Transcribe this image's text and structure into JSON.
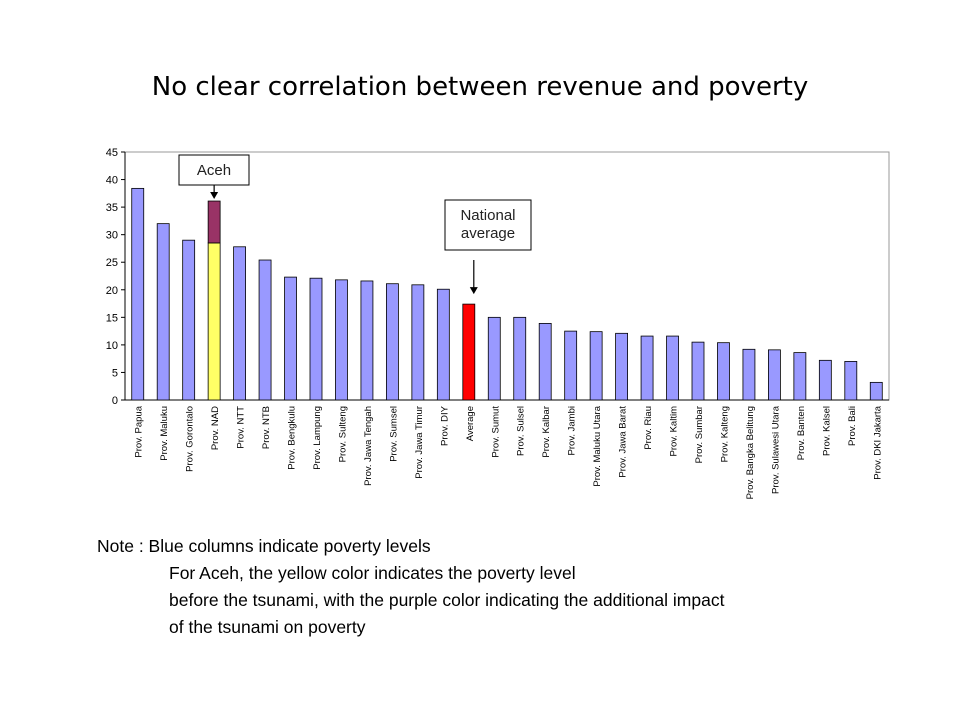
{
  "slide": {
    "title": "No clear correlation between revenue and poverty"
  },
  "chart_data": {
    "type": "bar",
    "title": "",
    "xlabel": "",
    "ylabel": "",
    "ylim": [
      0,
      45
    ],
    "yticks": [
      0,
      5,
      10,
      15,
      20,
      25,
      30,
      35,
      40,
      45
    ],
    "grid": true,
    "legend": "none",
    "categories": [
      "Prov. Papua",
      "Prov. Maluku",
      "Prov. Gorontalo",
      "Prov. NAD",
      "Prov. NTT",
      "Prov. NTB",
      "Prov. Bengkulu",
      "Prov. Lampung",
      "Prov. Sulteng",
      "Prov. Jawa Tengah",
      "Prov. Sumsel",
      "Prov. Jawa Timur",
      "Prov. DIY",
      "Average",
      "Prov. Sumut",
      "Prov. Sulsel",
      "Prov. Kalbar",
      "Prov. Jambi",
      "Prov. Maluku Utara",
      "Prov. Jawa Barat",
      "Prov. Riau",
      "Prov. Kaltim",
      "Prov. Sumbar",
      "Prov. Kalteng",
      "Prov. Bangka Belitung",
      "Prov. Sulawesi Utara",
      "Prov. Banten",
      "Prov. Kalsel",
      "Prov. Bali",
      "Prov. DKI Jakarta"
    ],
    "values": [
      38.4,
      32.0,
      29.0,
      36.1,
      27.8,
      25.4,
      22.3,
      22.1,
      21.8,
      21.6,
      21.1,
      20.9,
      20.1,
      17.4,
      15.0,
      15.0,
      13.9,
      12.5,
      12.4,
      12.1,
      11.6,
      11.6,
      10.5,
      10.4,
      9.2,
      9.1,
      8.6,
      7.2,
      7.0,
      3.2
    ],
    "stacked_bar": {
      "category": "Prov. NAD",
      "before_tsunami": 28.5,
      "tsunami_impact": 7.6
    },
    "colors": {
      "default": "#9999ff",
      "average": "#ff0000",
      "before_tsunami": "#ffff66",
      "tsunami_impact": "#993366",
      "grid": "#bbbbbb"
    },
    "annotations": [
      {
        "text": "Aceh",
        "target": "Prov. NAD"
      },
      {
        "text": "National\naverage",
        "target": "Average"
      }
    ]
  },
  "note": {
    "line1": "Note : Blue columns indicate poverty levels",
    "line2": "For Aceh, the yellow color indicates the poverty level",
    "line3": "before the tsunami, with the purple color indicating the additional impact",
    "line4": "of the tsunami on poverty"
  }
}
